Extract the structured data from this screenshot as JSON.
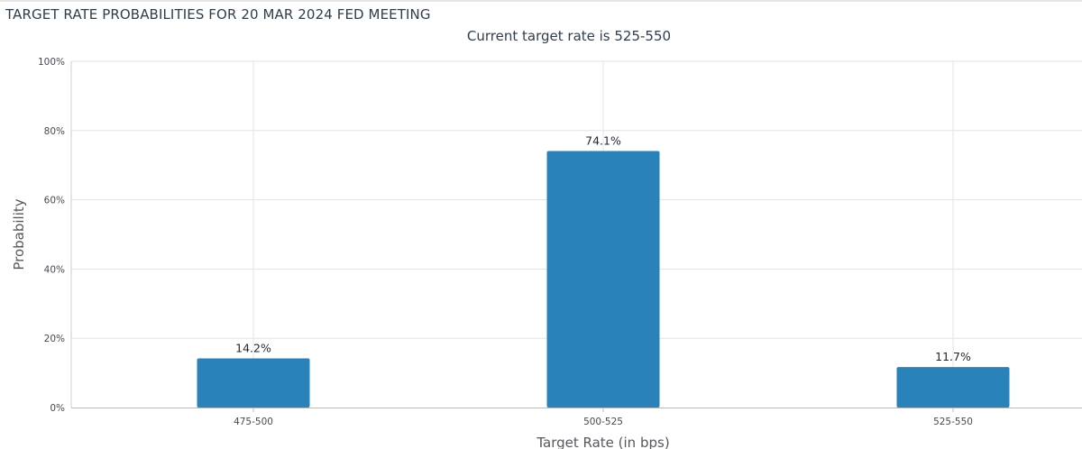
{
  "chart_data": {
    "type": "bar",
    "title": "TARGET RATE PROBABILITIES FOR 20 MAR 2024 FED MEETING",
    "subtitle": "Current target rate is 525-550",
    "xlabel": "Target Rate (in bps)",
    "ylabel": "Probability",
    "categories": [
      "475-500",
      "500-525",
      "525-550"
    ],
    "values": [
      14.2,
      74.1,
      11.7
    ],
    "data_labels": [
      "14.2%",
      "74.1%",
      "11.7%"
    ],
    "ylim": [
      0,
      100
    ],
    "yticks": [
      0,
      20,
      40,
      60,
      80,
      100
    ],
    "ytick_labels": [
      "0%",
      "20%",
      "40%",
      "60%",
      "80%",
      "100%"
    ],
    "grid": true,
    "bar_color": "#2a82ba"
  }
}
